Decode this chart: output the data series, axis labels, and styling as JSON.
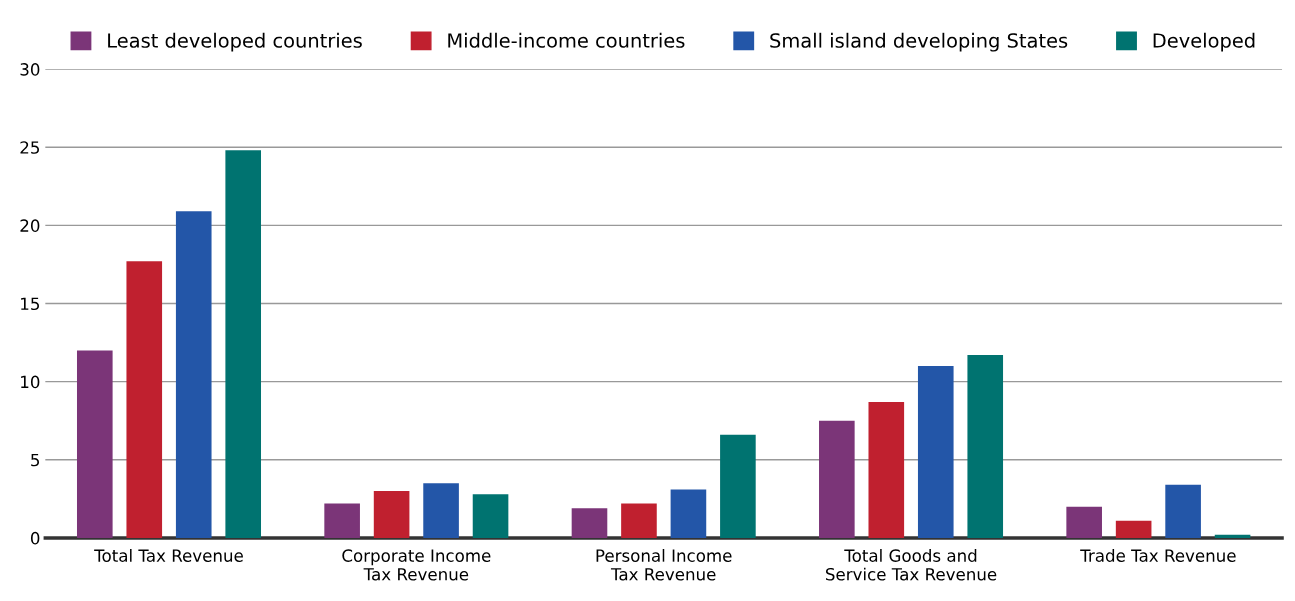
{
  "chart_data": {
    "type": "bar",
    "categories": [
      "Total Tax Revenue",
      "Corporate Income\nTax Revenue",
      "Personal Income\nTax Revenue",
      "Total Goods and\nService Tax Revenue",
      "Trade Tax Revenue"
    ],
    "series": [
      {
        "name": "Least developed countries",
        "color": "#7b3578",
        "values": [
          12.0,
          2.2,
          1.9,
          7.5,
          2.0
        ]
      },
      {
        "name": "Middle-income countries",
        "color": "#c0202f",
        "values": [
          17.7,
          3.0,
          2.2,
          8.7,
          1.1
        ]
      },
      {
        "name": "Small island developing States",
        "color": "#2356a8",
        "values": [
          20.9,
          3.5,
          3.1,
          11.0,
          3.4
        ]
      },
      {
        "name": "Developed",
        "color": "#007370",
        "values": [
          24.8,
          2.8,
          6.6,
          11.7,
          0.2
        ]
      }
    ],
    "ylim": [
      0,
      30
    ],
    "yticks": [
      0,
      5,
      10,
      15,
      20,
      25,
      30
    ],
    "grid": "y",
    "legend": "top"
  }
}
